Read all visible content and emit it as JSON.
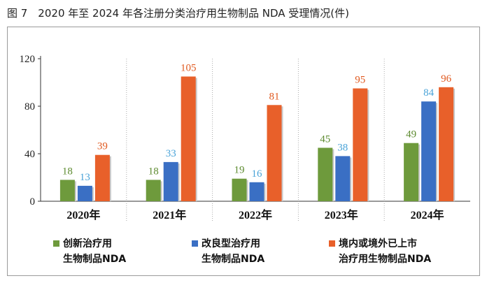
{
  "figure_title": "图 7　2020 年至 2024 年各注册分类治疗用生物制品 NDA 受理情况(件)",
  "chart_data": {
    "type": "bar",
    "categories": [
      "2020年",
      "2021年",
      "2022年",
      "2023年",
      "2024年"
    ],
    "ylim": [
      0,
      120
    ],
    "yticks": [
      0,
      40,
      80,
      120
    ],
    "grid": false,
    "legend_position": "bottom",
    "series": [
      {
        "name": "创新治疗用生物制品NDA",
        "legend_text": "创新治疗用\n生物制品NDA",
        "color": "#6e9a3c",
        "label_color": "#5c8a2e",
        "values": [
          18,
          18,
          19,
          45,
          49
        ]
      },
      {
        "name": "改良型治疗用生物制品NDA",
        "legend_text": "改良型治疗用\n生物制品NDA",
        "color": "#3a6fc4",
        "label_color": "#4aa3d8",
        "values": [
          13,
          33,
          16,
          38,
          84
        ]
      },
      {
        "name": "境内或境外已上市治疗用生物制品NDA",
        "legend_text": "境内或境外已上市\n治疗用生物制品NDA",
        "color": "#e8602a",
        "label_color": "#e0591f",
        "values": [
          39,
          105,
          81,
          95,
          96
        ]
      }
    ]
  }
}
